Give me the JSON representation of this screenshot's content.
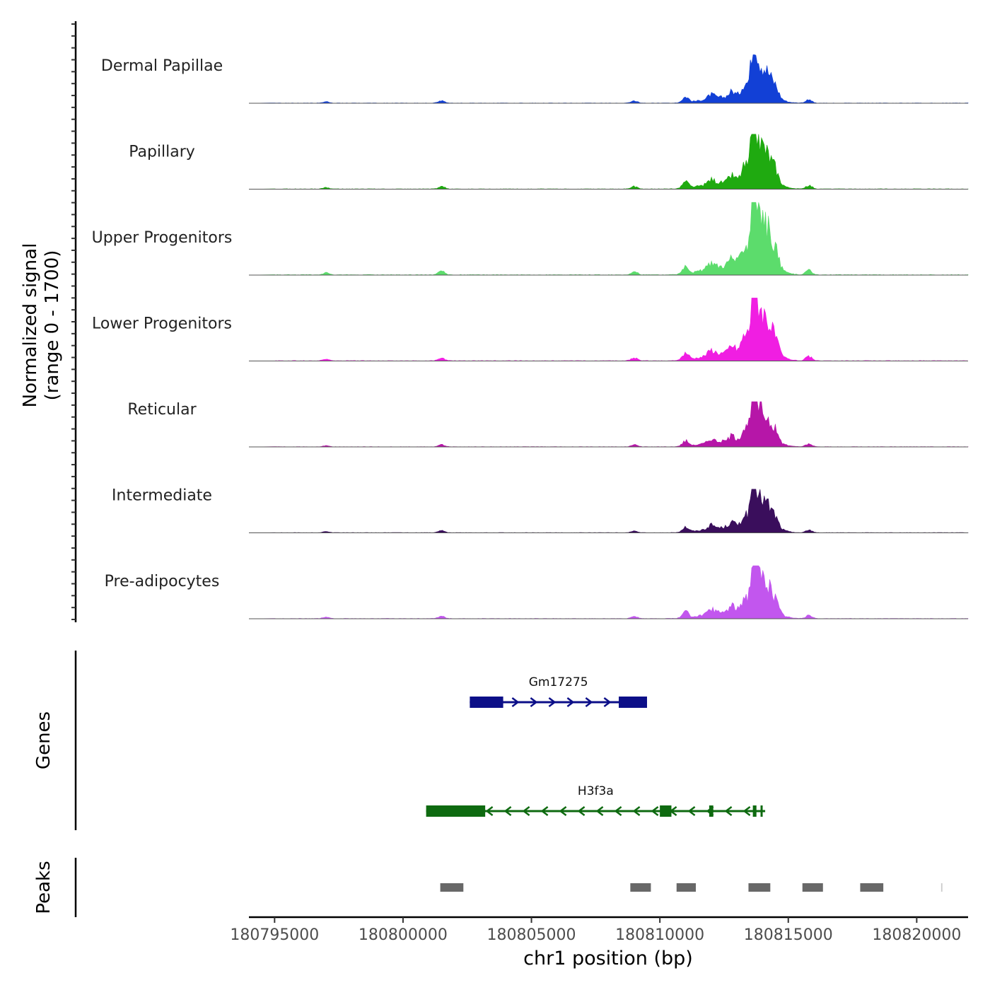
{
  "chart_data": {
    "type": "area",
    "chromosome": "chr1",
    "xlim": [
      180794000,
      180822000
    ],
    "x_ticks": [
      180795000,
      180800000,
      180805000,
      180810000,
      180815000,
      180820000
    ],
    "x_tick_labels": [
      "180795000",
      "180800000",
      "180805000",
      "180810000",
      "180815000",
      "180820000"
    ],
    "xlabel": "chr1 position (bp)",
    "ylabel": [
      "Normalized signal",
      "(range 0 - 1700)"
    ],
    "ylim": [
      0,
      1700
    ],
    "tracks": [
      {
        "name": "Dermal Papillae",
        "color": "#1240d6",
        "peak_value": 1500
      },
      {
        "name": "Papillary",
        "color": "#1faa10",
        "peak_value": 1700
      },
      {
        "name": "Upper Progenitors",
        "color": "#5cdc6c",
        "peak_value": 2250
      },
      {
        "name": "Lower Progenitors",
        "color": "#f01ee2",
        "peak_value": 1950
      },
      {
        "name": "Reticular",
        "color": "#b616a8",
        "peak_value": 1400
      },
      {
        "name": "Intermediate",
        "color": "#3a0e5c",
        "peak_value": 1350
      },
      {
        "name": "Pre-adipocytes",
        "color": "#c256ee",
        "peak_value": 1640
      }
    ],
    "signal_profile": [
      {
        "x": 180797000,
        "rel": 0.03
      },
      {
        "x": 180801500,
        "rel": 0.05
      },
      {
        "x": 180809000,
        "rel": 0.05
      },
      {
        "x": 180811000,
        "rel": 0.12
      },
      {
        "x": 180812000,
        "rel": 0.08
      },
      {
        "x": 180812800,
        "rel": 0.12
      },
      {
        "x": 180813300,
        "rel": 0.22
      },
      {
        "x": 180813650,
        "rel": 1.0
      },
      {
        "x": 180813850,
        "rel": 0.5
      },
      {
        "x": 180814200,
        "rel": 0.33
      },
      {
        "x": 180814500,
        "rel": 0.18
      },
      {
        "x": 180815800,
        "rel": 0.07
      }
    ],
    "genes_panel": {
      "label": "Genes",
      "genes": [
        {
          "name": "Gm17275",
          "strand": "+",
          "color": "#0c0f88",
          "start": 180802600,
          "end": 180809500,
          "exons": [
            [
              180802600,
              180803900
            ],
            [
              180808400,
              180809500
            ]
          ]
        },
        {
          "name": "H3f3a",
          "strand": "-",
          "color": "#0e6a10",
          "start": 180800900,
          "end": 180814100,
          "exons": [
            [
              180800900,
              180803200
            ],
            [
              180810000,
              180810450
            ],
            [
              180811920,
              180812080
            ],
            [
              180813620,
              180813760
            ],
            [
              180813920,
              180814000
            ]
          ]
        }
      ]
    },
    "peaks_panel": {
      "label": "Peaks",
      "color": "#686868",
      "peaks": [
        [
          180801450,
          180802350
        ],
        [
          180808850,
          180809650
        ],
        [
          180810650,
          180811400
        ],
        [
          180813450,
          180814300
        ],
        [
          180815550,
          180816350
        ],
        [
          180817800,
          180818700
        ],
        [
          180820950,
          180821000
        ]
      ]
    }
  }
}
